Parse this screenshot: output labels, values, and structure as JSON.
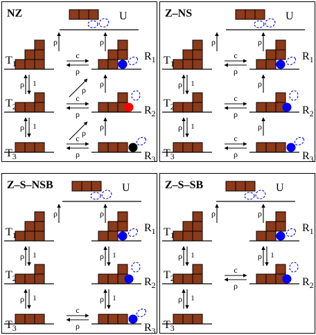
{
  "colors": {
    "brick": "#8b3a1a",
    "brick_outline": "#000000",
    "blue": "#0000ff",
    "red": "#ff0000",
    "black": "#000000"
  },
  "panels": [
    {
      "title": "NZ",
      "states": {
        "U": "U",
        "T1": "T1",
        "T2": "T2",
        "T3": "T3",
        "R1": "R1",
        "R2": "R2",
        "R3": "R3"
      },
      "rates": {
        "u_t1": "ρ",
        "u_r1": "ρ",
        "t1_r1_fwd": "c",
        "t1_r1_back": "ρ",
        "t2_r2_fwd": "c",
        "t2_r2_back": "ρ",
        "t3_r3_fwd": "c",
        "t3_r3_back": "ρ",
        "t1_t2_up": "ρ",
        "t1_t2_down": "1",
        "t2_t3_up": "ρ",
        "t2_t3_down": "1",
        "r1_r2": "ρ",
        "r2_r3": "ρ",
        "diag1": "ρ",
        "diag2": "ρ"
      }
    },
    {
      "title": "Z–NS",
      "states": {
        "U": "U",
        "T1": "T1",
        "T2": "T2",
        "T3": "T3",
        "R1": "R1",
        "R2": "R2",
        "R3": "R3"
      },
      "rates": {
        "u_t1": "ρ",
        "u_r1": "ρ",
        "t1_r1_fwd": "c",
        "t1_r1_back": "ρ",
        "t2_r2_fwd": "c",
        "t2_r2_back": "ρ",
        "t3_r3_fwd": "c",
        "t3_r3_back": "ρ",
        "t1_t2_up": "ρ",
        "t1_t2_down": "1",
        "t2_t3_up": "ρ",
        "t2_t3_down": "1",
        "r1_r2": "ρ",
        "r2_r3": "ρ"
      }
    },
    {
      "title": "Z–S–NSB",
      "states": {
        "U": "U",
        "T1": "T1",
        "T2": "T2",
        "T3": "T3",
        "R1": "R1",
        "R2": "R2",
        "R3": "R3"
      },
      "rates": {
        "u_t1": "ρ",
        "u_r1": "ρ",
        "t3_r3_fwd": "c",
        "t3_r3_back": "ρ",
        "t1_t2_up": "ρ",
        "t1_t2_down": "1",
        "t2_t3_up": "ρ",
        "t2_t3_down": "1",
        "r1_r2_up": "ρ",
        "r1_r2_down": "1",
        "r2_r3_up": "ρ",
        "r2_r3_down": "1"
      }
    },
    {
      "title": "Z–S–SB",
      "states": {
        "U": "U",
        "T1": "T1",
        "T2": "T2",
        "T3": "T3",
        "R1": "R1",
        "R2": "R2"
      },
      "rates": {
        "u_t1": "ρ",
        "u_r1": "ρ",
        "t2_r2_fwd": "c",
        "t2_r2_back": "ρ",
        "t1_t2_up": "ρ",
        "t1_t2_down": "1",
        "t2_t3_up": "ρ",
        "t2_t3_down": "1",
        "r1_r2_up": "ρ",
        "r1_r2_down": "1"
      }
    }
  ]
}
